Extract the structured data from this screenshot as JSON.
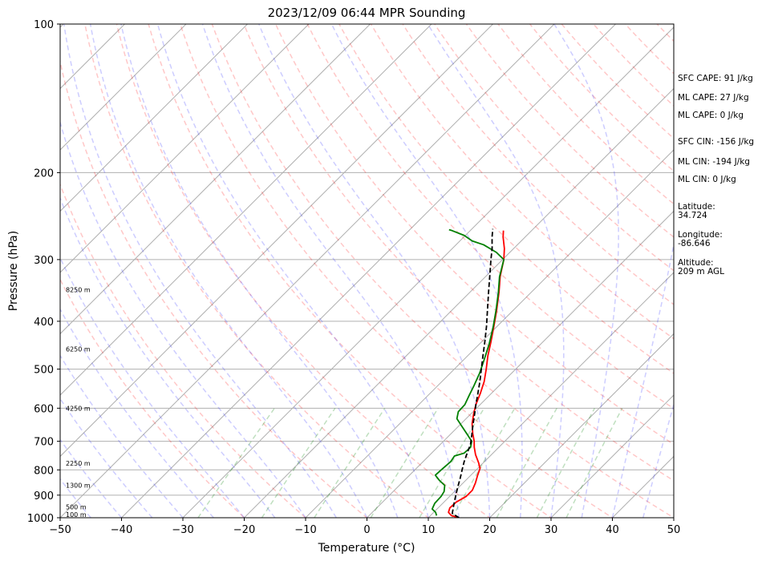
{
  "chart_data": {
    "type": "line",
    "chart_kind": "Skew-T log-P sounding",
    "title": "2023/12/09 06:44 MPR Sounding",
    "xlabel": "Temperature (°C)",
    "ylabel": "Pressure (hPa)",
    "xlim": [
      -50,
      50
    ],
    "ylim": [
      1000,
      100
    ],
    "y_scale": "log",
    "x_ticks": [
      "−50",
      "−40",
      "−30",
      "−20",
      "−10",
      "0",
      "10",
      "20",
      "30",
      "40",
      "50"
    ],
    "x_tick_values": [
      -50,
      -40,
      -30,
      -20,
      -10,
      0,
      10,
      20,
      30,
      40,
      50
    ],
    "y_ticks": [
      "1000",
      "900",
      "800",
      "700",
      "600",
      "500",
      "400",
      "300",
      "200",
      "100"
    ],
    "y_tick_values": [
      1000,
      900,
      800,
      700,
      600,
      500,
      400,
      300,
      200,
      100
    ],
    "grid": true,
    "height_labels": [
      {
        "p": 985,
        "label": "100 m"
      },
      {
        "p": 950,
        "label": "500 m"
      },
      {
        "p": 860,
        "label": "1300 m"
      },
      {
        "p": 775,
        "label": "2250 m"
      },
      {
        "p": 600,
        "label": "4250 m"
      },
      {
        "p": 455,
        "label": "6250 m"
      },
      {
        "p": 345,
        "label": "8250 m"
      }
    ],
    "series": [
      {
        "role": "temperature",
        "color": "#ff0000",
        "points": [
          [
            1000,
            15.0
          ],
          [
            990,
            13.4
          ],
          [
            975,
            12.4
          ],
          [
            955,
            11.9
          ],
          [
            930,
            12.0
          ],
          [
            905,
            12.7
          ],
          [
            880,
            12.7
          ],
          [
            850,
            12.0
          ],
          [
            820,
            11.1
          ],
          [
            795,
            10.4
          ],
          [
            775,
            9.3
          ],
          [
            745,
            7.4
          ],
          [
            720,
            6.0
          ],
          [
            700,
            5.0
          ],
          [
            675,
            3.5
          ],
          [
            645,
            1.8
          ],
          [
            615,
            0.4
          ],
          [
            590,
            -0.7
          ],
          [
            560,
            -1.8
          ],
          [
            530,
            -3.1
          ],
          [
            500,
            -4.8
          ],
          [
            470,
            -6.7
          ],
          [
            440,
            -8.5
          ],
          [
            410,
            -10.5
          ],
          [
            380,
            -12.7
          ],
          [
            350,
            -15.2
          ],
          [
            325,
            -17.6
          ],
          [
            300,
            -19.8
          ],
          [
            285,
            -21.5
          ],
          [
            270,
            -23.6
          ],
          [
            262,
            -24.6
          ]
        ]
      },
      {
        "role": "dewpoint",
        "color": "#008000",
        "points": [
          [
            990,
            11.0
          ],
          [
            975,
            10.3
          ],
          [
            960,
            9.2
          ],
          [
            935,
            8.7
          ],
          [
            905,
            8.6
          ],
          [
            885,
            8.3
          ],
          [
            860,
            7.4
          ],
          [
            840,
            5.7
          ],
          [
            820,
            4.2
          ],
          [
            800,
            4.3
          ],
          [
            770,
            4.5
          ],
          [
            750,
            4.2
          ],
          [
            740,
            5.3
          ],
          [
            720,
            5.4
          ],
          [
            700,
            4.6
          ],
          [
            675,
            2.5
          ],
          [
            650,
            0.3
          ],
          [
            630,
            -1.5
          ],
          [
            610,
            -2.4
          ],
          [
            590,
            -2.5
          ],
          [
            565,
            -3.3
          ],
          [
            540,
            -4.1
          ],
          [
            510,
            -5.2
          ],
          [
            480,
            -6.6
          ],
          [
            445,
            -8.4
          ],
          [
            410,
            -10.6
          ],
          [
            380,
            -12.8
          ],
          [
            350,
            -15.3
          ],
          [
            325,
            -17.7
          ],
          [
            300,
            -19.8
          ],
          [
            290,
            -22.2
          ],
          [
            280,
            -25.5
          ],
          [
            275,
            -28.0
          ],
          [
            268,
            -30.2
          ],
          [
            262,
            -33.0
          ],
          [
            261,
            -33.6
          ]
        ]
      },
      {
        "role": "parcel",
        "color": "#000000",
        "points": [
          [
            1000,
            15.0
          ],
          [
            980,
            13.2
          ],
          [
            950,
            12.3
          ],
          [
            920,
            11.4
          ],
          [
            890,
            10.5
          ],
          [
            860,
            9.6
          ],
          [
            830,
            8.7
          ],
          [
            800,
            7.7
          ],
          [
            770,
            6.7
          ],
          [
            740,
            5.8
          ],
          [
            710,
            4.9
          ],
          [
            680,
            3.6
          ],
          [
            650,
            2.2
          ],
          [
            620,
            0.8
          ],
          [
            590,
            -0.7
          ],
          [
            560,
            -2.2
          ],
          [
            530,
            -3.8
          ],
          [
            500,
            -5.6
          ],
          [
            470,
            -7.5
          ],
          [
            440,
            -9.5
          ],
          [
            410,
            -11.7
          ],
          [
            380,
            -14.2
          ],
          [
            350,
            -16.9
          ],
          [
            320,
            -19.8
          ],
          [
            300,
            -21.9
          ],
          [
            285,
            -23.5
          ],
          [
            270,
            -25.4
          ],
          [
            260,
            -26.6
          ]
        ]
      }
    ],
    "stats": {
      "sfc_cape": "SFC CAPE: 91 J/kg",
      "ml_cape_a": "ML CAPE: 27 J/kg",
      "ml_cape_b": "ML CAPE: 0 J/kg",
      "sfc_cin": "SFC CIN: -156 J/kg",
      "ml_cin_a": "ML CIN: -194 J/kg",
      "ml_cin_b": "ML CIN: 0 J/kg",
      "latitude_label": "Latitude:",
      "latitude_value": "34.724",
      "longitude_label": "Longitude:",
      "longitude_value": "-86.646",
      "altitude_label": "Altitude:",
      "altitude_value": "209 m AGL"
    }
  }
}
